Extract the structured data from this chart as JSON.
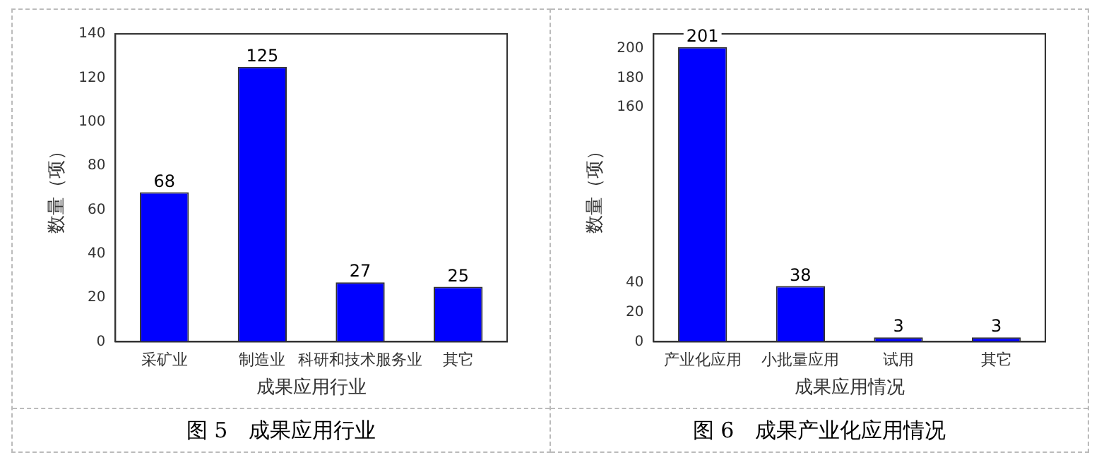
{
  "chart_data": [
    {
      "type": "bar",
      "title": "图 5　成果应用行业",
      "xlabel": "成果应用行业",
      "ylabel": "数量（项）",
      "categories": [
        "采矿业",
        "制造业",
        "科研和技术服务业",
        "其它"
      ],
      "values": [
        68,
        125,
        27,
        25
      ],
      "color": "#0000ff",
      "ylim": [
        0,
        140
      ],
      "yticks": [
        0,
        20,
        40,
        60,
        80,
        100,
        120,
        140
      ],
      "data_labels": true,
      "grid": false,
      "legend": false
    },
    {
      "type": "bar",
      "title": "图 6　成果产业化应用情况",
      "xlabel": "成果应用情况",
      "ylabel": "数量（项）",
      "categories": [
        "产业化应用",
        "小批量应用",
        "试用",
        "其它"
      ],
      "values": [
        201,
        38,
        3,
        3
      ],
      "color": "#0000ff",
      "ylim": [
        0,
        210
      ],
      "yticks": [
        0,
        20,
        40,
        160,
        180,
        200
      ],
      "data_labels": true,
      "grid": false,
      "legend": false
    }
  ]
}
